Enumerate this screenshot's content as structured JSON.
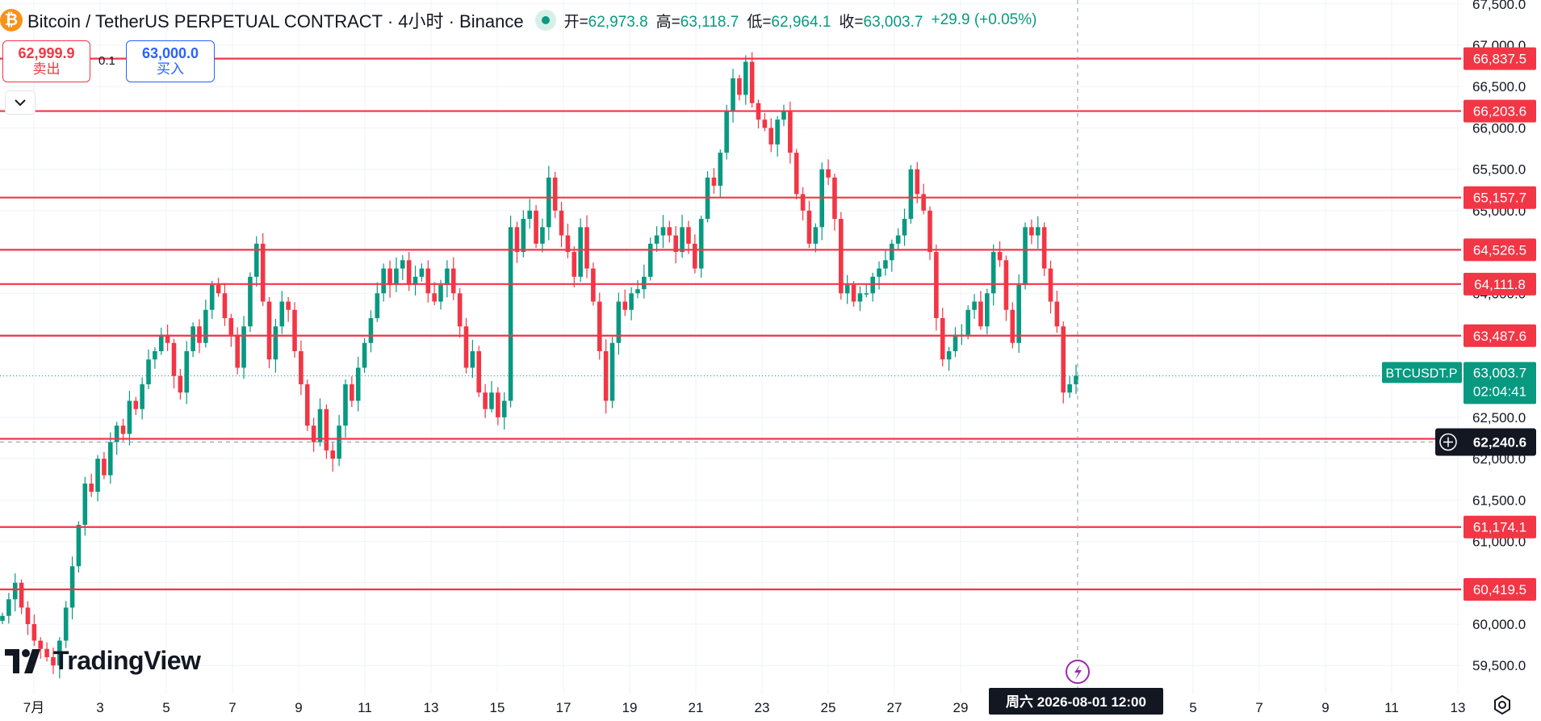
{
  "header": {
    "coin_glyph": "₿",
    "title": "Bitcoin / TetherUS PERPETUAL CONTRACT · 4小时 · Binance",
    "open_label": "开=",
    "open": "62,973.8",
    "high_label": "高=",
    "high": "63,118.7",
    "low_label": "低=",
    "low": "62,964.1",
    "close_label": "收=",
    "close": "63,003.7",
    "change": "+29.9 (+0.05%)"
  },
  "trade": {
    "sell_price": "62,999.9",
    "sell_label": "卖出",
    "spread": "0.1",
    "buy_price": "63,000.0",
    "buy_label": "买入"
  },
  "logo": {
    "text": "TradingView"
  },
  "crosshair": {
    "time_label": "周六 2026-08-01   12:00",
    "price_label": "62,240.6"
  },
  "colors": {
    "up": "#089981",
    "down": "#f23645",
    "line": "#f23645",
    "accent": "#2962ff",
    "purple": "#9c27b0"
  },
  "chart_data": {
    "type": "candlestick",
    "symbol": "BTCUSDT.P",
    "interval": "4小时",
    "exchange": "Binance",
    "y_axis_ticks": [
      59500,
      60000,
      60500,
      61000,
      61500,
      62000,
      62500,
      63000,
      63500,
      64000,
      64500,
      65000,
      65500,
      66000,
      66500,
      67000,
      67500
    ],
    "y_axis_tick_labels": [
      "59,500.0",
      "60,000.0",
      "60,500.0",
      "61,000.0",
      "61,500.0",
      "62,000.0",
      "62,500.0",
      "63,000.0",
      "63,500.0",
      "64,000.0",
      "64,500.0",
      "65,000.0",
      "65,500.0",
      "66,000.0",
      "66,500.0",
      "67,000.0",
      "67,500.0"
    ],
    "x_axis_ticks": [
      "7月",
      "3",
      "5",
      "7",
      "9",
      "11",
      "13",
      "15",
      "17",
      "19",
      "21",
      "23",
      "25",
      "27",
      "29",
      "5",
      "7",
      "9",
      "11",
      "13"
    ],
    "horizontal_lines": [
      {
        "value": 66837.5,
        "label": "66,837.5"
      },
      {
        "value": 66203.6,
        "label": "66,203.6"
      },
      {
        "value": 65157.7,
        "label": "65,157.7"
      },
      {
        "value": 64526.5,
        "label": "64,526.5"
      },
      {
        "value": 64111.8,
        "label": "64,111.8"
      },
      {
        "value": 63487.6,
        "label": "63,487.6"
      },
      {
        "value": 62240.6,
        "label": "62,240.6"
      },
      {
        "value": 61174.1,
        "label": "61,174.1"
      },
      {
        "value": 60419.5,
        "label": "60,419.5"
      }
    ],
    "last_price": {
      "value": 63003.7,
      "label": "63,003.7",
      "symbol_label": "BTCUSDT.P",
      "countdown": "02:04:41"
    },
    "candles_close": [
      60100,
      60300,
      60500,
      60200,
      60000,
      59800,
      59700,
      59600,
      59500,
      59800,
      60200,
      60700,
      61200,
      61700,
      61600,
      62000,
      61800,
      62200,
      62400,
      62300,
      62700,
      62600,
      62900,
      63200,
      63300,
      63500,
      63400,
      63000,
      62800,
      63300,
      63600,
      63400,
      63800,
      64100,
      64000,
      63700,
      63500,
      63100,
      63600,
      64200,
      64600,
      63900,
      63200,
      63600,
      63900,
      63800,
      63300,
      62900,
      62400,
      62200,
      62600,
      62100,
      62000,
      62400,
      62900,
      62700,
      63100,
      63400,
      63700,
      64000,
      64300,
      64100,
      64300,
      64400,
      64100,
      64200,
      64300,
      64000,
      63900,
      64100,
      64300,
      64000,
      63600,
      63100,
      63300,
      62800,
      62600,
      62800,
      62500,
      62700,
      64800,
      64500,
      64900,
      65000,
      64600,
      64800,
      65400,
      65000,
      64700,
      64500,
      64200,
      64800,
      64300,
      63900,
      63300,
      62700,
      63400,
      63900,
      63800,
      64000,
      64050,
      64200,
      64600,
      64700,
      64800,
      64700,
      64500,
      64800,
      64600,
      64300,
      64900,
      65400,
      65300,
      65700,
      66200,
      66600,
      66400,
      66800,
      66300,
      66100,
      66000,
      65800,
      66100,
      66200,
      65700,
      65200,
      65000,
      64600,
      64800,
      65500,
      65400,
      64900,
      64000,
      64100,
      63900,
      64000,
      64000,
      64200,
      64300,
      64400,
      64600,
      64700,
      64900,
      65500,
      65200,
      65000,
      64500,
      63700,
      63200,
      63300,
      63500,
      63500,
      63800,
      63900,
      63600,
      64000,
      64500,
      64400,
      63800,
      63400,
      64100,
      64800,
      64700,
      64800,
      64300,
      63900,
      63600,
      62800,
      62900,
      63003.7
    ],
    "close_range": [
      59500,
      66837.5
    ],
    "candles_note": "approximate closes read from the chart"
  }
}
